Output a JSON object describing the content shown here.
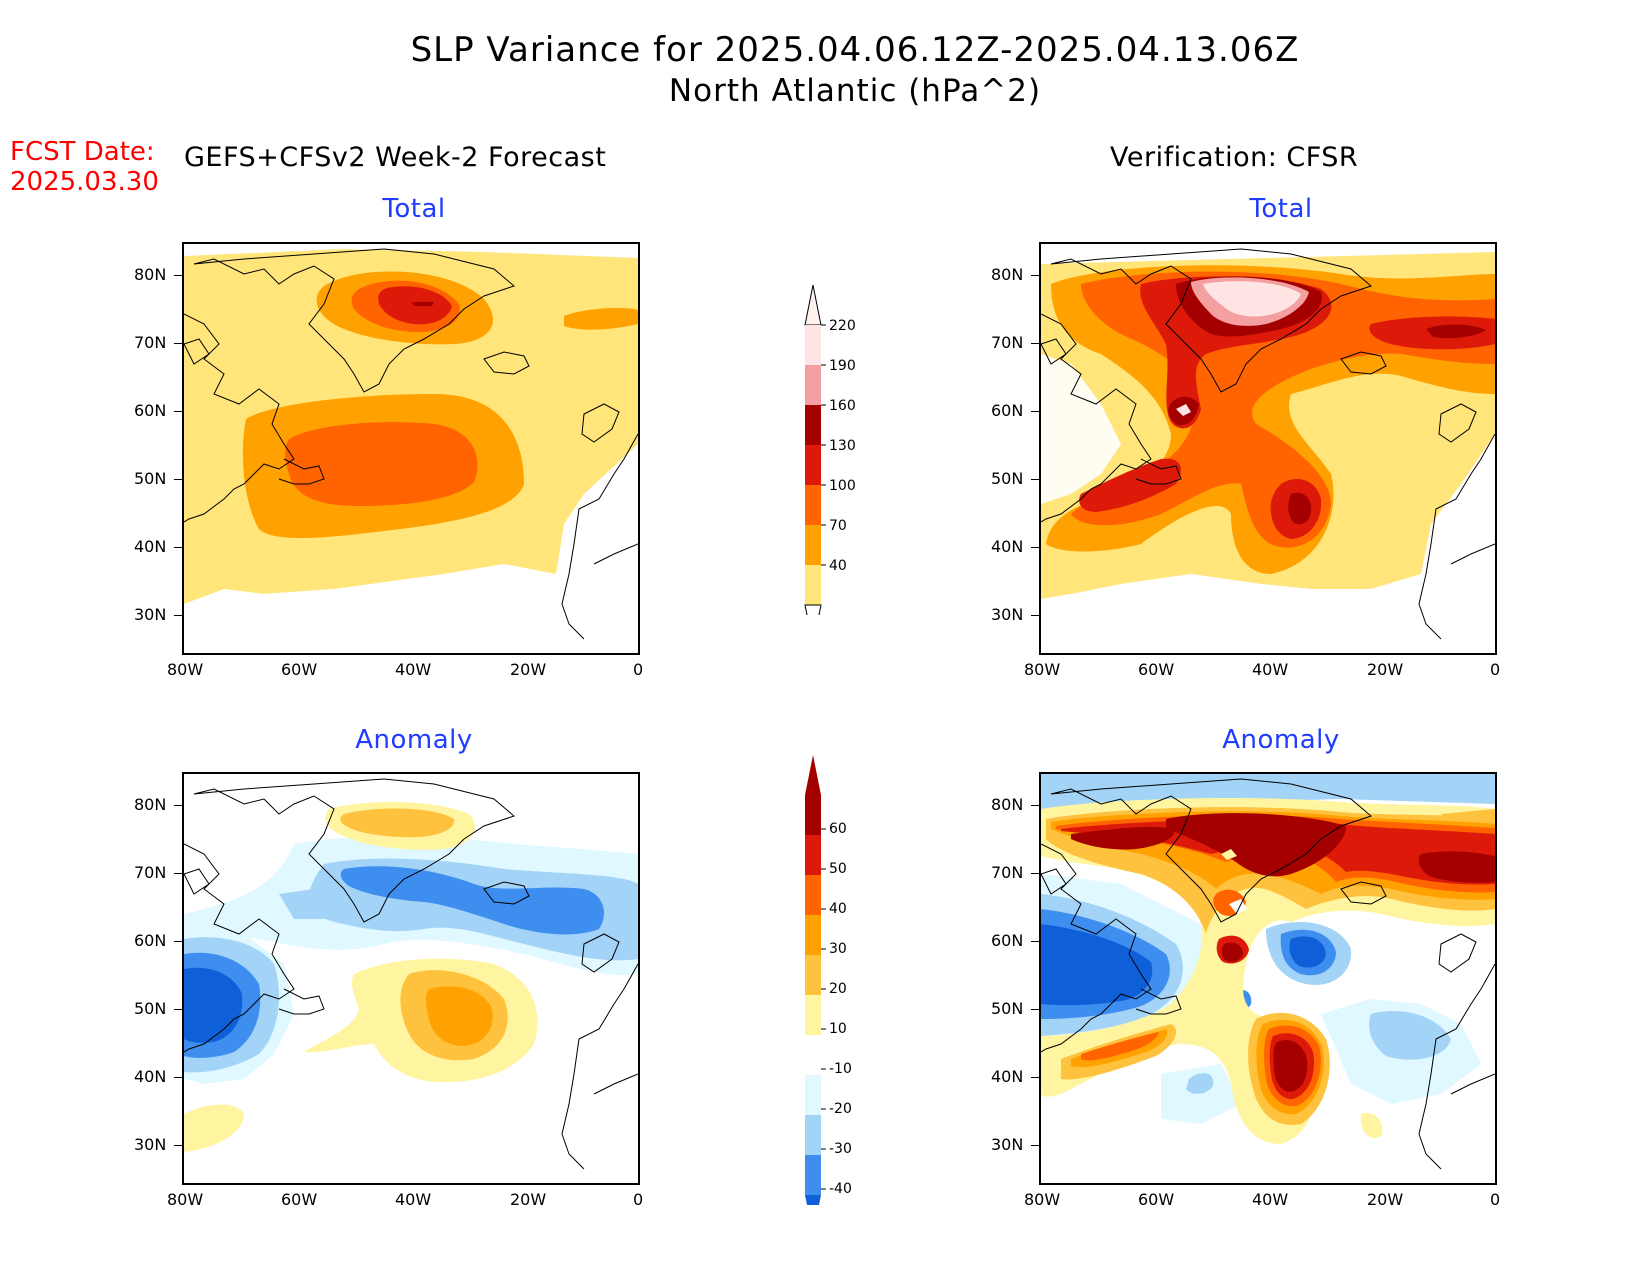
{
  "header": {
    "title": "SLP Variance for 2025.04.06.12Z-2025.04.13.06Z",
    "subtitle": "North Atlantic (hPa^2)",
    "fcst_label": "FCST Date:",
    "fcst_date": "2025.03.30",
    "left_heading": "GEFS+CFSv2 Week-2 Forecast",
    "right_heading": "Verification: CFSR"
  },
  "panels": {
    "fcst_total_title": "Total",
    "fcst_anom_title": "Anomaly",
    "verif_total_title": "Total",
    "verif_anom_title": "Anomaly"
  },
  "axes": {
    "lat_ticks": [
      "80N",
      "70N",
      "60N",
      "50N",
      "40N",
      "30N"
    ],
    "lon_ticks": [
      "80W",
      "60W",
      "40W",
      "20W",
      "0"
    ]
  },
  "colorbars": {
    "total": {
      "labels": [
        "220",
        "190",
        "160",
        "130",
        "100",
        "70",
        "40"
      ],
      "colors": [
        "#ffe4e4",
        "#f4a0a0",
        "#a50000",
        "#dd1a0a",
        "#ff6400",
        "#ffa100",
        "#ffe57a"
      ]
    },
    "anomaly": {
      "labels": [
        "60",
        "50",
        "40",
        "30",
        "20",
        "10",
        "-10",
        "-20",
        "-30",
        "-40"
      ],
      "colors": [
        "#a50000",
        "#dd1a0a",
        "#ff6400",
        "#ffa100",
        "#ffc23e",
        "#fff5a0",
        "#ffffff",
        "#e0f8ff",
        "#a3d3f7",
        "#3e8ef0",
        "#0f5fd8"
      ]
    }
  }
}
